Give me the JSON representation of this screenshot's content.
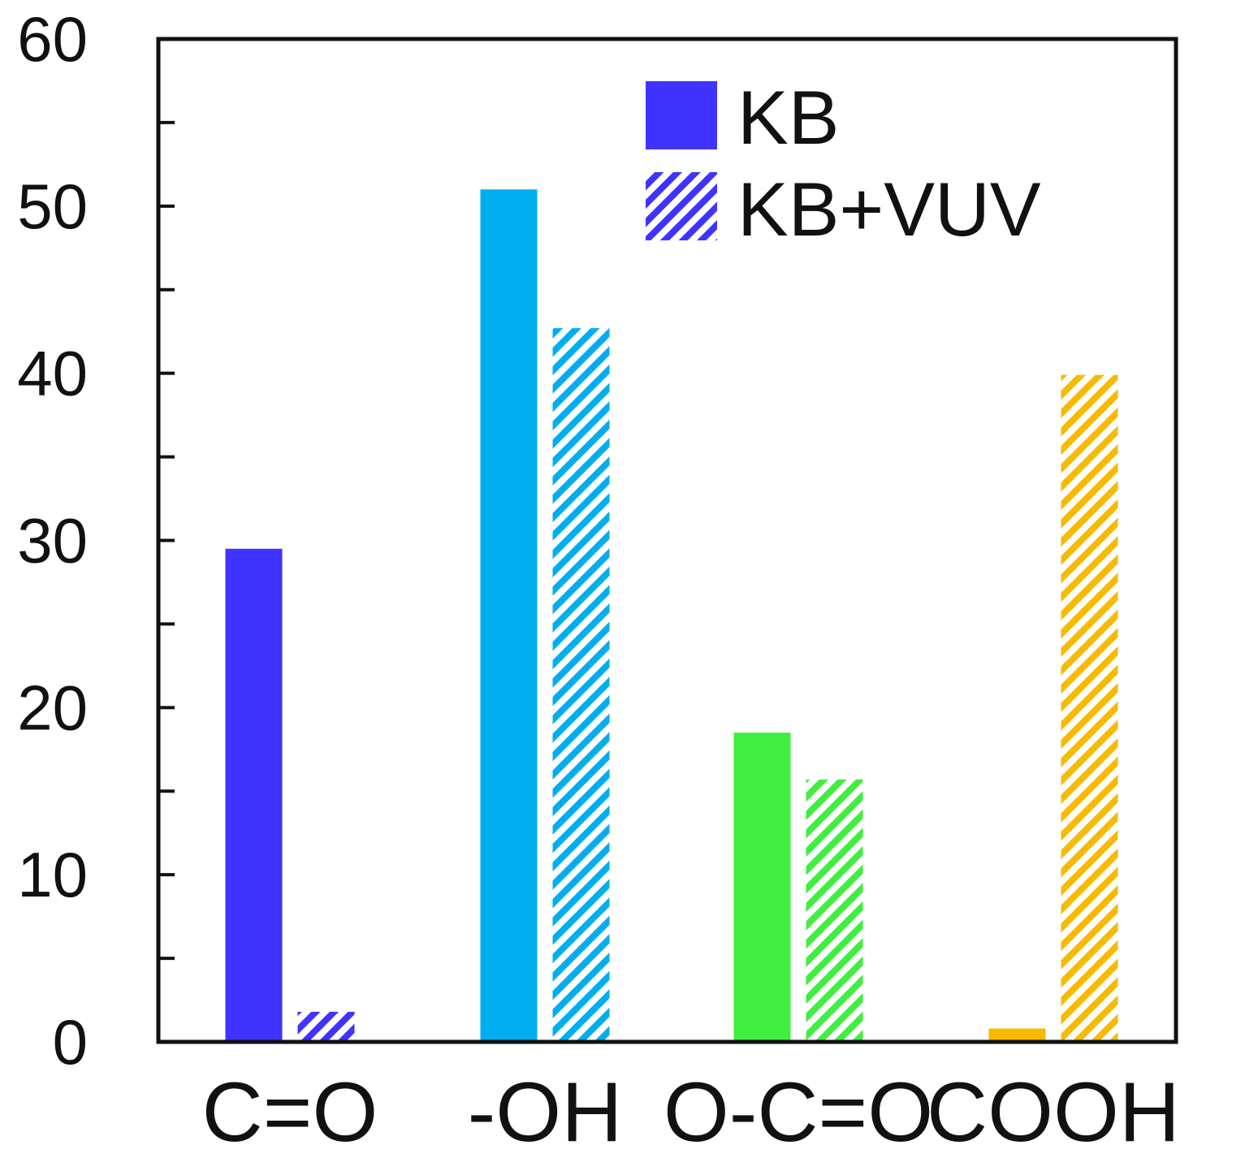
{
  "chart_data": {
    "type": "bar",
    "title": "",
    "xlabel": "",
    "ylabel": "",
    "categories": [
      "C=O",
      "-OH",
      "O-C=O",
      "COOH"
    ],
    "category_colors": [
      "#3F33FF",
      "#00AEEF",
      "#40EE40",
      "#F7BA00"
    ],
    "series": [
      {
        "name": "KB",
        "values": [
          29.5,
          51.0,
          18.5,
          0.8
        ],
        "fill": "solid"
      },
      {
        "name": "KB+VUV",
        "values": [
          1.8,
          42.7,
          15.7,
          39.9
        ],
        "fill": "hatched"
      }
    ],
    "ylim": [
      0,
      60
    ],
    "yticks": [
      0,
      10,
      20,
      30,
      40,
      50,
      60
    ],
    "legend": {
      "position": "top-right",
      "color": "#3F33FF",
      "items": [
        "KB",
        "KB+VUV"
      ]
    },
    "grid": false
  }
}
